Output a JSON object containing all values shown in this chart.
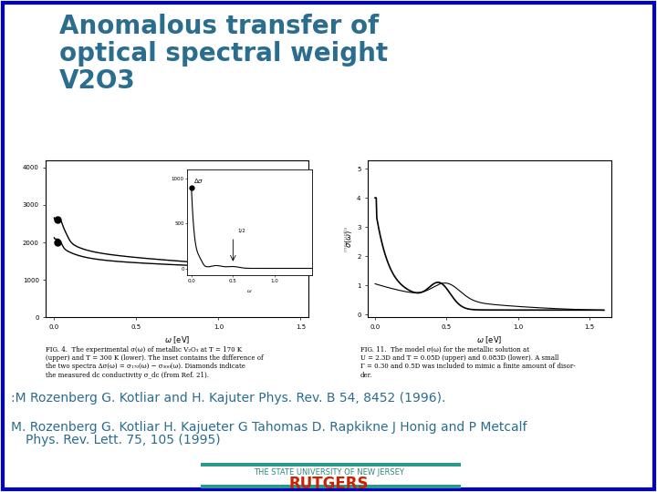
{
  "title_line1": "Anomalous transfer of",
  "title_line2": "optical spectral weight",
  "title_line3": "V2O3",
  "title_color": "#2a6d8f",
  "title_fontsize": 20,
  "title_bold": true,
  "ref1": ":M Rozenberg G. Kotliar and H. Kajuter Phys. Rev. B 54, 8452 (1996).",
  "ref2_line1": "M. Rozenberg G. Kotliar H. Kajueter G Tahomas D. Rapkikne J Honig and P Metcalf",
  "ref2_line2": "    Phys. Rev. Lett. 75, 105 (1995)",
  "ref_color": "#2a6d8f",
  "ref_fontsize": 10,
  "rutgers_text": "RUTGERS",
  "rutgers_subtext": "THE STATE UNIVERSITY OF NEW JERSEY",
  "rutgers_color": "#cc2200",
  "rutgers_sub_color": "#2a8a7a",
  "rutgers_fontsize": 12,
  "rutgers_sub_fontsize": 6,
  "bar_color": "#2a9a8a",
  "border_color": "#0000cc",
  "bg_color": "#ffffff"
}
